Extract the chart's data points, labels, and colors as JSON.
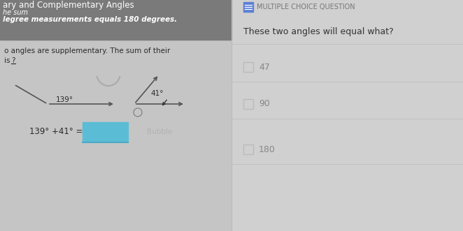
{
  "bg_color_left": "#c5c5c5",
  "bg_color_right": "#d0d0d0",
  "title_bar_color": "#7a7a7a",
  "title_text": "ary and Complementary Angles",
  "subtitle_italic": "he sum",
  "subtitle_bold": "legree measurements equals 180 degrees.",
  "body_line1": "o angles are supplementary. The sum of their",
  "body_line2": "is ",
  "body_underline_char": "?",
  "angle1_label": "139°",
  "angle2_label": "41°",
  "equation_text": "139° +41° =",
  "blue_rect_color": "#5bbcd6",
  "mcq_icon_color": "#5b7fd4",
  "mcq_label": "MULTIPLE CHOICE QUESTION",
  "question_text": "These two angles will equal what?",
  "choices": [
    "47",
    "90",
    "180"
  ],
  "separator_color": "#c0c0c0",
  "body_text_color": "#2a2a2a",
  "choice_text_color": "#888888",
  "question_text_color": "#333333",
  "mcq_text_color": "#777777"
}
